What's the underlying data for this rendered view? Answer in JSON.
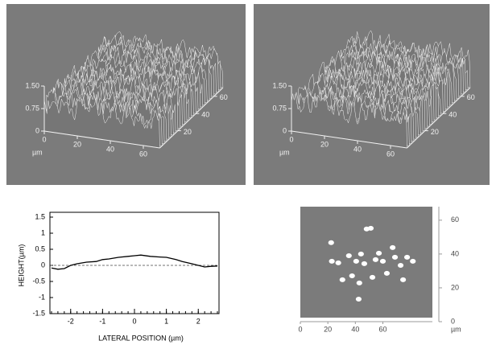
{
  "chart_data": [
    {
      "type": "surface3d",
      "xlim": [
        0,
        70
      ],
      "ylim": [
        0,
        70
      ],
      "zlim": [
        0,
        1.5
      ],
      "zticks": [
        0,
        {
          "value": 0.75,
          "label": "0.75"
        },
        {
          "value": 1.5,
          "label": "1.50"
        }
      ],
      "xticks": [
        0,
        20,
        40,
        60
      ],
      "yticks": [
        20,
        40,
        60
      ],
      "x_label": "µm"
    },
    {
      "type": "surface3d",
      "xlim": [
        0,
        70
      ],
      "ylim": [
        0,
        70
      ],
      "zlim": [
        0,
        1.5
      ],
      "zticks": [
        0,
        {
          "value": 0.75,
          "label": "0.75"
        },
        {
          "value": 1.5,
          "label": "1.50"
        }
      ],
      "xticks": [
        0,
        20,
        40,
        60
      ],
      "yticks": [
        20,
        40,
        60
      ],
      "x_label": "µm"
    },
    {
      "type": "line",
      "x_label": "LATERAL POSITION (µm)",
      "y_label": "HEIGHT(µm)",
      "xlim": [
        -2.65,
        2.65
      ],
      "ylim": [
        -1.5,
        1.5
      ],
      "xticks": [
        -2,
        -1,
        0,
        1,
        2
      ],
      "yticks": [
        1.5,
        1.0,
        0.5,
        0,
        -0.5,
        -1.0,
        -1.5
      ],
      "x": [
        -2.6,
        -2.4,
        -2.2,
        -2.0,
        -1.8,
        -1.5,
        -1.2,
        -1.0,
        -0.8,
        -0.5,
        -0.2,
        0,
        0.2,
        0.5,
        0.8,
        1.0,
        1.3,
        1.5,
        1.8,
        2.0,
        2.2,
        2.4,
        2.6
      ],
      "series": [
        {
          "color": "#000000",
          "values": [
            -0.08,
            -0.12,
            -0.1,
            0.0,
            0.05,
            0.1,
            0.12,
            0.18,
            0.2,
            0.25,
            0.28,
            0.3,
            0.32,
            0.28,
            0.26,
            0.25,
            0.18,
            0.12,
            0.05,
            0.0,
            -0.05,
            -0.03,
            -0.02
          ]
        }
      ]
    },
    {
      "type": "scatter",
      "x_label": "µm",
      "xlim": [
        0,
        96
      ],
      "ylim": [
        0,
        68
      ],
      "xticks": [
        0,
        20,
        40,
        60
      ],
      "yticks": [
        0,
        20,
        40,
        60
      ],
      "color": "#ffffff",
      "x": [
        22.4,
        27.6,
        22.9,
        35.3,
        48.2,
        51.2,
        40.6,
        44.1,
        46.5,
        54.7,
        57.1,
        60.0,
        67.1,
        68.8,
        72.9,
        81.8,
        77.6,
        37.6,
        42.9,
        42.4,
        30.6,
        52.4,
        62.9,
        74.7
      ],
      "values": [
        46.7,
        34.8,
        35.7,
        39.0,
        54.8,
        55.2,
        35.7,
        40.0,
        34.3,
        36.7,
        40.5,
        35.7,
        43.8,
        38.1,
        33.3,
        35.7,
        38.1,
        27.1,
        22.9,
        13.3,
        24.8,
        26.2,
        28.6,
        24.8
      ]
    }
  ]
}
